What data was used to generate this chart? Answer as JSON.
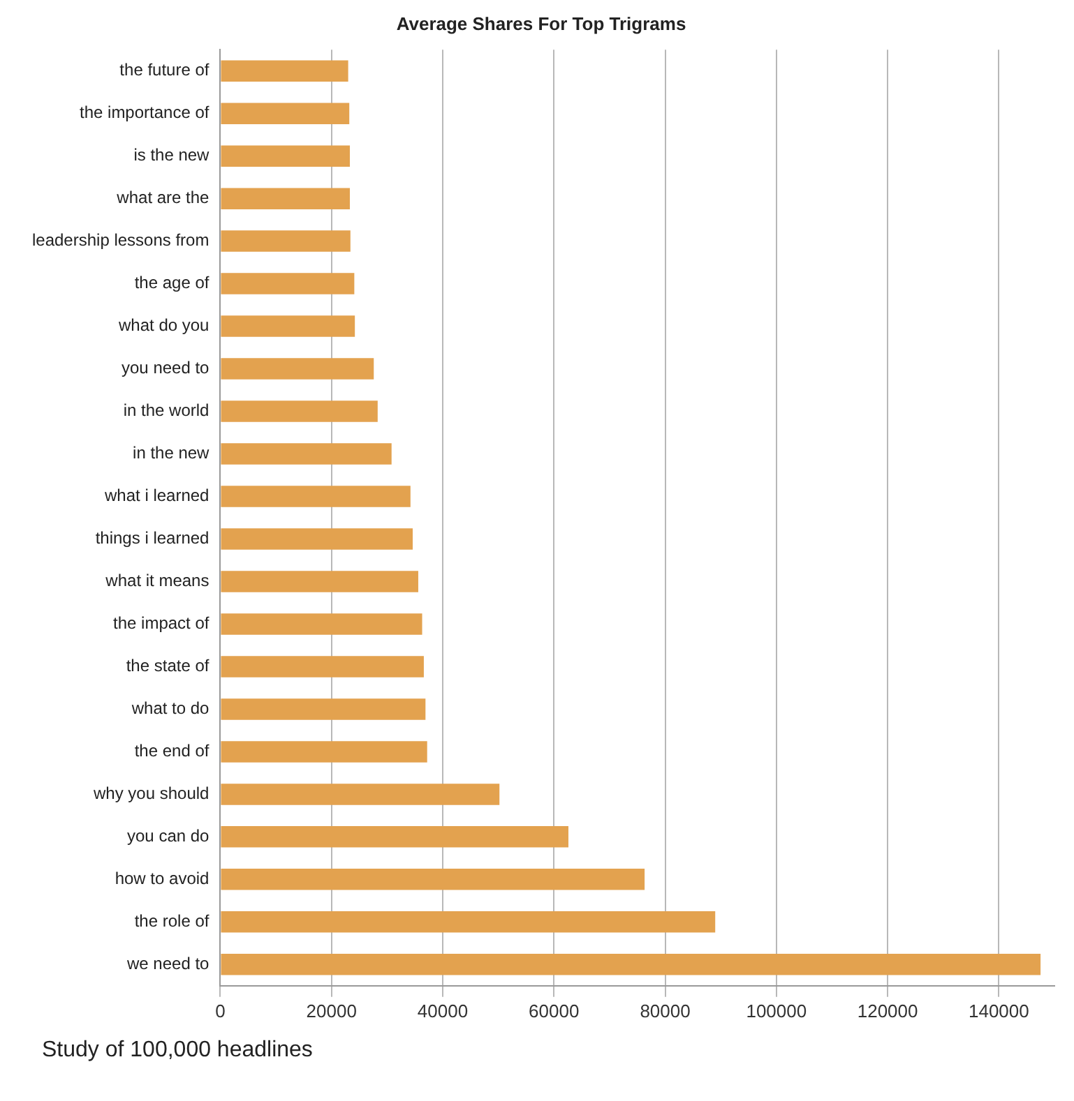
{
  "chart_data": {
    "type": "bar",
    "orientation": "horizontal",
    "title": "Average Shares For Top Trigrams",
    "categories": [
      "the future of",
      "the importance of",
      "is the new",
      "what are the",
      "leadership lessons from",
      "the age of",
      "what do you",
      "you need to",
      "in the world",
      "in the new",
      "what i learned",
      "things i learned",
      "what it means",
      "the impact of",
      "the state of",
      "what to do",
      "the end of",
      "why you should",
      "you can do",
      "how to avoid",
      "the role of",
      "we need to"
    ],
    "values": [
      23000,
      23200,
      23300,
      23300,
      23400,
      24100,
      24200,
      27600,
      28300,
      30800,
      34200,
      34600,
      35600,
      36300,
      36600,
      36900,
      37200,
      50200,
      62600,
      76300,
      89000,
      147500
    ],
    "color": "#e3a24f",
    "xlim": [
      0,
      150000
    ],
    "xticks": [
      0,
      20000,
      40000,
      60000,
      80000,
      100000,
      120000,
      140000
    ],
    "grid": "x",
    "legend": false,
    "annotations": [
      "Study of 100,000 headlines"
    ]
  }
}
